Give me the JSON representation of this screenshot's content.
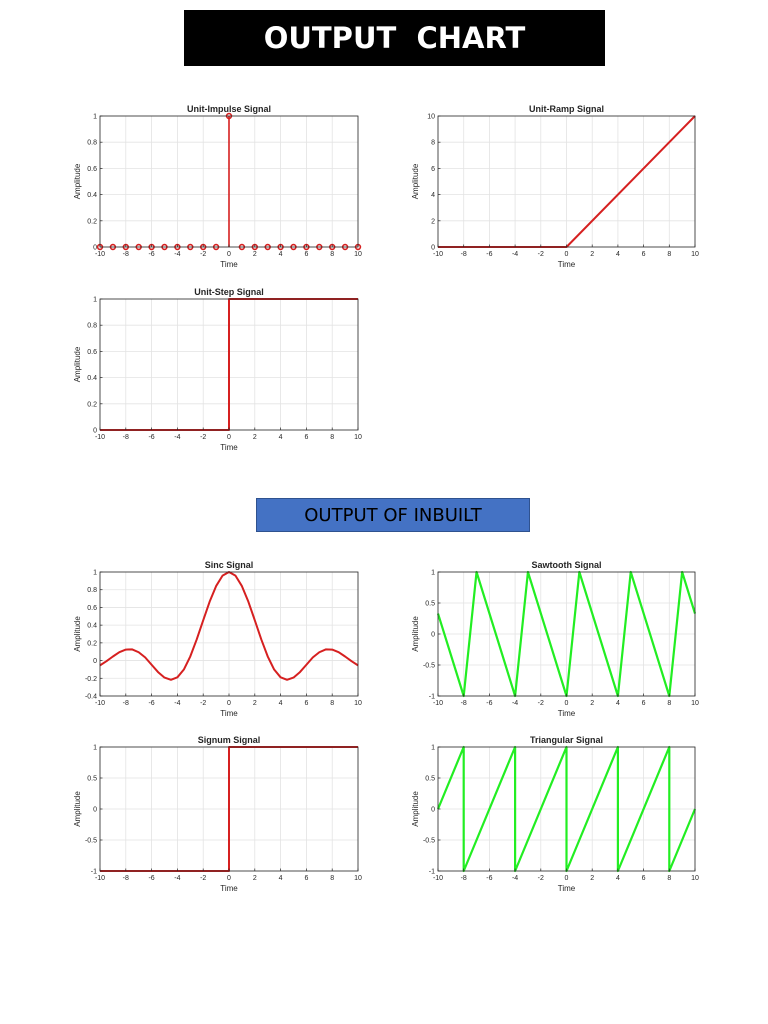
{
  "header": {
    "title": "OUTPUT  CHART"
  },
  "section2": {
    "title": "OUTPUT OF INBUILT"
  },
  "colors": {
    "red": "#d62020",
    "green": "#22ee22",
    "grid": "#e3e3e3",
    "axis": "#262626"
  },
  "chart_data": [
    {
      "id": "impulse",
      "type": "stem",
      "title": "Unit-Impulse Signal",
      "xlabel": "Time",
      "ylabel": "Amplitude",
      "xlim": [
        -10,
        10
      ],
      "ylim": [
        0,
        1
      ],
      "xticks": [
        -10,
        -8,
        -6,
        -4,
        -2,
        0,
        2,
        4,
        6,
        8,
        10
      ],
      "yticks": [
        0,
        0.2,
        0.4,
        0.6,
        0.8,
        1
      ],
      "grid": true,
      "color": "#d62020",
      "series": [
        {
          "x": [
            -10,
            -9,
            -8,
            -7,
            -6,
            -5,
            -4,
            -3,
            -2,
            -1,
            0,
            1,
            2,
            3,
            4,
            5,
            6,
            7,
            8,
            9,
            10
          ],
          "y": [
            0,
            0,
            0,
            0,
            0,
            0,
            0,
            0,
            0,
            0,
            1,
            0,
            0,
            0,
            0,
            0,
            0,
            0,
            0,
            0,
            0
          ]
        }
      ]
    },
    {
      "id": "ramp",
      "type": "line",
      "title": "Unit-Ramp Signal",
      "xlabel": "Time",
      "ylabel": "Amplitude",
      "xlim": [
        -10,
        10
      ],
      "ylim": [
        0,
        10
      ],
      "xticks": [
        -10,
        -8,
        -6,
        -4,
        -2,
        0,
        2,
        4,
        6,
        8,
        10
      ],
      "yticks": [
        0,
        2,
        4,
        6,
        8,
        10
      ],
      "grid": true,
      "color": "#d62020",
      "series": [
        {
          "x": [
            -10,
            0,
            10
          ],
          "y": [
            0,
            0,
            10
          ]
        }
      ]
    },
    {
      "id": "step",
      "type": "line",
      "title": "Unit-Step Signal",
      "xlabel": "Time",
      "ylabel": "Amplitude",
      "xlim": [
        -10,
        10
      ],
      "ylim": [
        0,
        1
      ],
      "xticks": [
        -10,
        -8,
        -6,
        -4,
        -2,
        0,
        2,
        4,
        6,
        8,
        10
      ],
      "yticks": [
        0,
        0.2,
        0.4,
        0.6,
        0.8,
        1
      ],
      "grid": true,
      "color": "#d62020",
      "series": [
        {
          "x": [
            -10,
            0,
            0,
            10
          ],
          "y": [
            0,
            0,
            1,
            1
          ]
        }
      ]
    },
    {
      "id": "sinc",
      "type": "line",
      "title": "Sinc Signal",
      "xlabel": "Time",
      "ylabel": "Amplitude",
      "xlim": [
        -10,
        10
      ],
      "ylim": [
        -0.4,
        1
      ],
      "xticks": [
        -10,
        -8,
        -6,
        -4,
        -2,
        0,
        2,
        4,
        6,
        8,
        10
      ],
      "yticks": [
        -0.4,
        -0.2,
        0,
        0.2,
        0.4,
        0.6,
        0.8,
        1
      ],
      "grid": true,
      "color": "#d62020",
      "series": [
        {
          "x": [
            -10,
            -9.5,
            -9,
            -8.5,
            -8,
            -7.5,
            -7,
            -6.5,
            -6,
            -5.5,
            -5,
            -4.5,
            -4,
            -3.5,
            -3,
            -2.5,
            -2,
            -1.5,
            -1,
            -0.5,
            0,
            0.5,
            1,
            1.5,
            2,
            2.5,
            3,
            3.5,
            4,
            4.5,
            5,
            5.5,
            6,
            6.5,
            7,
            7.5,
            8,
            8.5,
            9,
            9.5,
            10
          ],
          "y": [
            -0.054,
            -0.007,
            0.046,
            0.095,
            0.124,
            0.126,
            0.094,
            0.036,
            -0.047,
            -0.13,
            -0.192,
            -0.217,
            -0.189,
            -0.101,
            0.047,
            0.24,
            0.455,
            0.665,
            0.841,
            0.959,
            1,
            0.959,
            0.841,
            0.665,
            0.455,
            0.24,
            0.047,
            -0.101,
            -0.189,
            -0.217,
            -0.192,
            -0.13,
            -0.047,
            0.036,
            0.094,
            0.126,
            0.124,
            0.095,
            0.046,
            -0.007,
            -0.054
          ]
        }
      ]
    },
    {
      "id": "sawtooth",
      "type": "line",
      "title": "Sawtooth Signal",
      "xlabel": "Time",
      "ylabel": "Amplitude",
      "xlim": [
        -10,
        10
      ],
      "ylim": [
        -1,
        1
      ],
      "xticks": [
        -10,
        -8,
        -6,
        -4,
        -2,
        0,
        2,
        4,
        6,
        8,
        10
      ],
      "yticks": [
        -1,
        -0.5,
        0,
        0.5,
        1
      ],
      "grid": true,
      "color": "#22ee22",
      "series": [
        {
          "x": [
            -10,
            -8,
            -7,
            -4,
            -3,
            0,
            1,
            4,
            5,
            8,
            9,
            10
          ],
          "y": [
            0.33,
            -1,
            1,
            -1,
            1,
            -1,
            1,
            -1,
            1,
            -1,
            1,
            0.33
          ]
        }
      ]
    },
    {
      "id": "signum",
      "type": "line",
      "title": "Signum Signal",
      "xlabel": "Time",
      "ylabel": "Amplitude",
      "xlim": [
        -10,
        10
      ],
      "ylim": [
        -1,
        1
      ],
      "xticks": [
        -10,
        -8,
        -6,
        -4,
        -2,
        0,
        2,
        4,
        6,
        8,
        10
      ],
      "yticks": [
        -1,
        -0.5,
        0,
        0.5,
        1
      ],
      "grid": true,
      "color": "#d62020",
      "series": [
        {
          "x": [
            -10,
            0,
            0,
            10
          ],
          "y": [
            -1,
            -1,
            1,
            1
          ]
        }
      ]
    },
    {
      "id": "triangular",
      "type": "line",
      "title": "Triangular Signal",
      "xlabel": "Time",
      "ylabel": "Amplitude",
      "xlim": [
        -10,
        10
      ],
      "ylim": [
        -1,
        1
      ],
      "xticks": [
        -10,
        -8,
        -6,
        -4,
        -2,
        0,
        2,
        4,
        6,
        8,
        10
      ],
      "yticks": [
        -1,
        -0.5,
        0,
        0.5,
        1
      ],
      "grid": true,
      "color": "#22ee22",
      "series": [
        {
          "x": [
            -10,
            -8,
            -8,
            -4,
            -4,
            0,
            0,
            4,
            4,
            8,
            8,
            10
          ],
          "y": [
            0,
            1,
            -1,
            1,
            -1,
            1,
            -1,
            1,
            -1,
            1,
            -1,
            0
          ]
        }
      ]
    }
  ]
}
